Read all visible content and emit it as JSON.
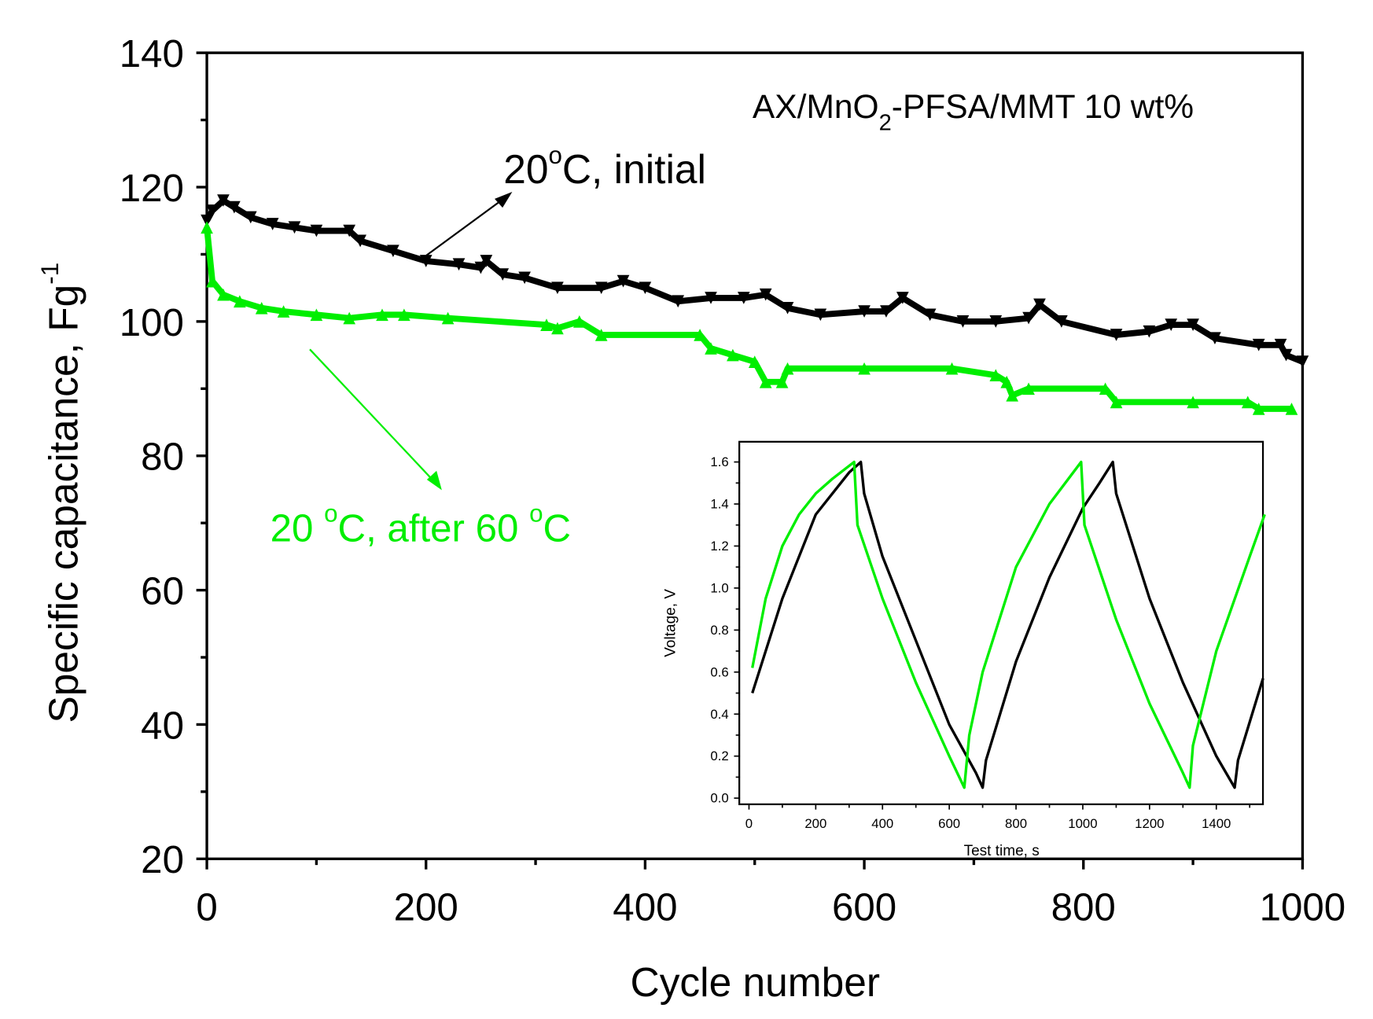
{
  "chart_data": [
    {
      "type": "line",
      "title": "AX/MnO2-PFSA/MMT 10 wt%",
      "title_parts": {
        "main": "AX/MnO",
        "sub": "2",
        "rest": "-PFSA/MMT 10 wt%"
      },
      "xlabel": "Cycle number",
      "ylabel": "Specific capacitance, Fg",
      "ylabel_sup": "-1",
      "xlim": [
        0,
        1000
      ],
      "ylim": [
        20,
        140
      ],
      "xticks": [
        0,
        200,
        400,
        600,
        800,
        1000
      ],
      "yticks": [
        20,
        40,
        60,
        80,
        100,
        120,
        140
      ],
      "grid": false,
      "annotations": {
        "initial": {
          "pre": "20",
          "sup": "o",
          "post": "C, initial"
        },
        "after": {
          "pre": "20 ",
          "sup1": "o",
          "mid": "C, after 60 ",
          "sup2": "o",
          "post": "C"
        }
      },
      "series": [
        {
          "name": "20°C, initial",
          "color": "#000000",
          "marker": "down-triangle",
          "x": [
            0,
            5,
            15,
            25,
            40,
            60,
            80,
            100,
            130,
            140,
            170,
            200,
            230,
            250,
            255,
            270,
            290,
            320,
            360,
            380,
            400,
            430,
            460,
            490,
            510,
            530,
            560,
            600,
            620,
            635,
            660,
            690,
            720,
            750,
            760,
            780,
            830,
            860,
            880,
            900,
            920,
            960,
            980,
            985,
            1000
          ],
          "y": [
            115,
            116.5,
            118,
            117,
            115.5,
            114.5,
            114,
            113.5,
            113.5,
            112,
            110.5,
            109,
            108.5,
            108,
            109,
            107,
            106.5,
            105,
            105,
            106,
            105,
            103,
            103.5,
            103.5,
            104,
            102,
            101,
            101.5,
            101.5,
            103.5,
            101,
            100,
            100,
            100.5,
            102.5,
            100,
            98,
            98.5,
            99.5,
            99.5,
            97.5,
            96.5,
            96.5,
            95,
            94
          ]
        },
        {
          "name": "20 °C, after 60 °C",
          "color": "#00ee00",
          "marker": "up-triangle",
          "x": [
            0,
            5,
            15,
            30,
            50,
            70,
            100,
            130,
            160,
            180,
            220,
            310,
            320,
            340,
            360,
            450,
            460,
            480,
            500,
            510,
            525,
            530,
            600,
            680,
            720,
            730,
            735,
            750,
            820,
            830,
            900,
            950,
            960,
            990
          ],
          "y": [
            114,
            106,
            104,
            103,
            102,
            101.5,
            101,
            100.5,
            101,
            101,
            100.5,
            99.5,
            99,
            100,
            98,
            98,
            96,
            95,
            94,
            91,
            91,
            93,
            93,
            93,
            92,
            91,
            89,
            90,
            90,
            88,
            88,
            88,
            87,
            87
          ]
        }
      ]
    },
    {
      "type": "line",
      "name": "inset",
      "xlabel": "Test time, s",
      "ylabel": "Voltage, V",
      "xlim": [
        -30,
        1545
      ],
      "ylim": [
        -0.05,
        1.7
      ],
      "xticks": [
        0,
        200,
        400,
        600,
        800,
        1000,
        1200,
        1400
      ],
      "yticks": [
        "0.0",
        "0.2",
        "0.4",
        "0.6",
        "0.8",
        "1.0",
        "1.2",
        "1.4",
        "1.6"
      ],
      "series": [
        {
          "name": "initial",
          "color": "#000000",
          "x": [
            10,
            100,
            200,
            300,
            335,
            345,
            400,
            500,
            600,
            680,
            700,
            710,
            800,
            900,
            1000,
            1050,
            1090,
            1100,
            1200,
            1300,
            1400,
            1455,
            1465,
            1540
          ],
          "y": [
            0.5,
            0.95,
            1.35,
            1.55,
            1.6,
            1.45,
            1.15,
            0.75,
            0.35,
            0.12,
            0.05,
            0.18,
            0.65,
            1.05,
            1.38,
            1.5,
            1.6,
            1.45,
            0.95,
            0.55,
            0.2,
            0.05,
            0.18,
            0.57
          ]
        },
        {
          "name": "after 60 °C",
          "color": "#00ee00",
          "x": [
            10,
            50,
            100,
            150,
            200,
            250,
            315,
            325,
            400,
            500,
            600,
            645,
            660,
            700,
            800,
            900,
            995,
            1005,
            1100,
            1200,
            1300,
            1320,
            1330,
            1400,
            1500,
            1545
          ],
          "y": [
            0.62,
            0.95,
            1.2,
            1.35,
            1.45,
            1.52,
            1.6,
            1.3,
            0.95,
            0.55,
            0.2,
            0.05,
            0.3,
            0.6,
            1.1,
            1.4,
            1.6,
            1.3,
            0.85,
            0.45,
            0.12,
            0.05,
            0.25,
            0.7,
            1.15,
            1.35
          ]
        }
      ]
    }
  ]
}
